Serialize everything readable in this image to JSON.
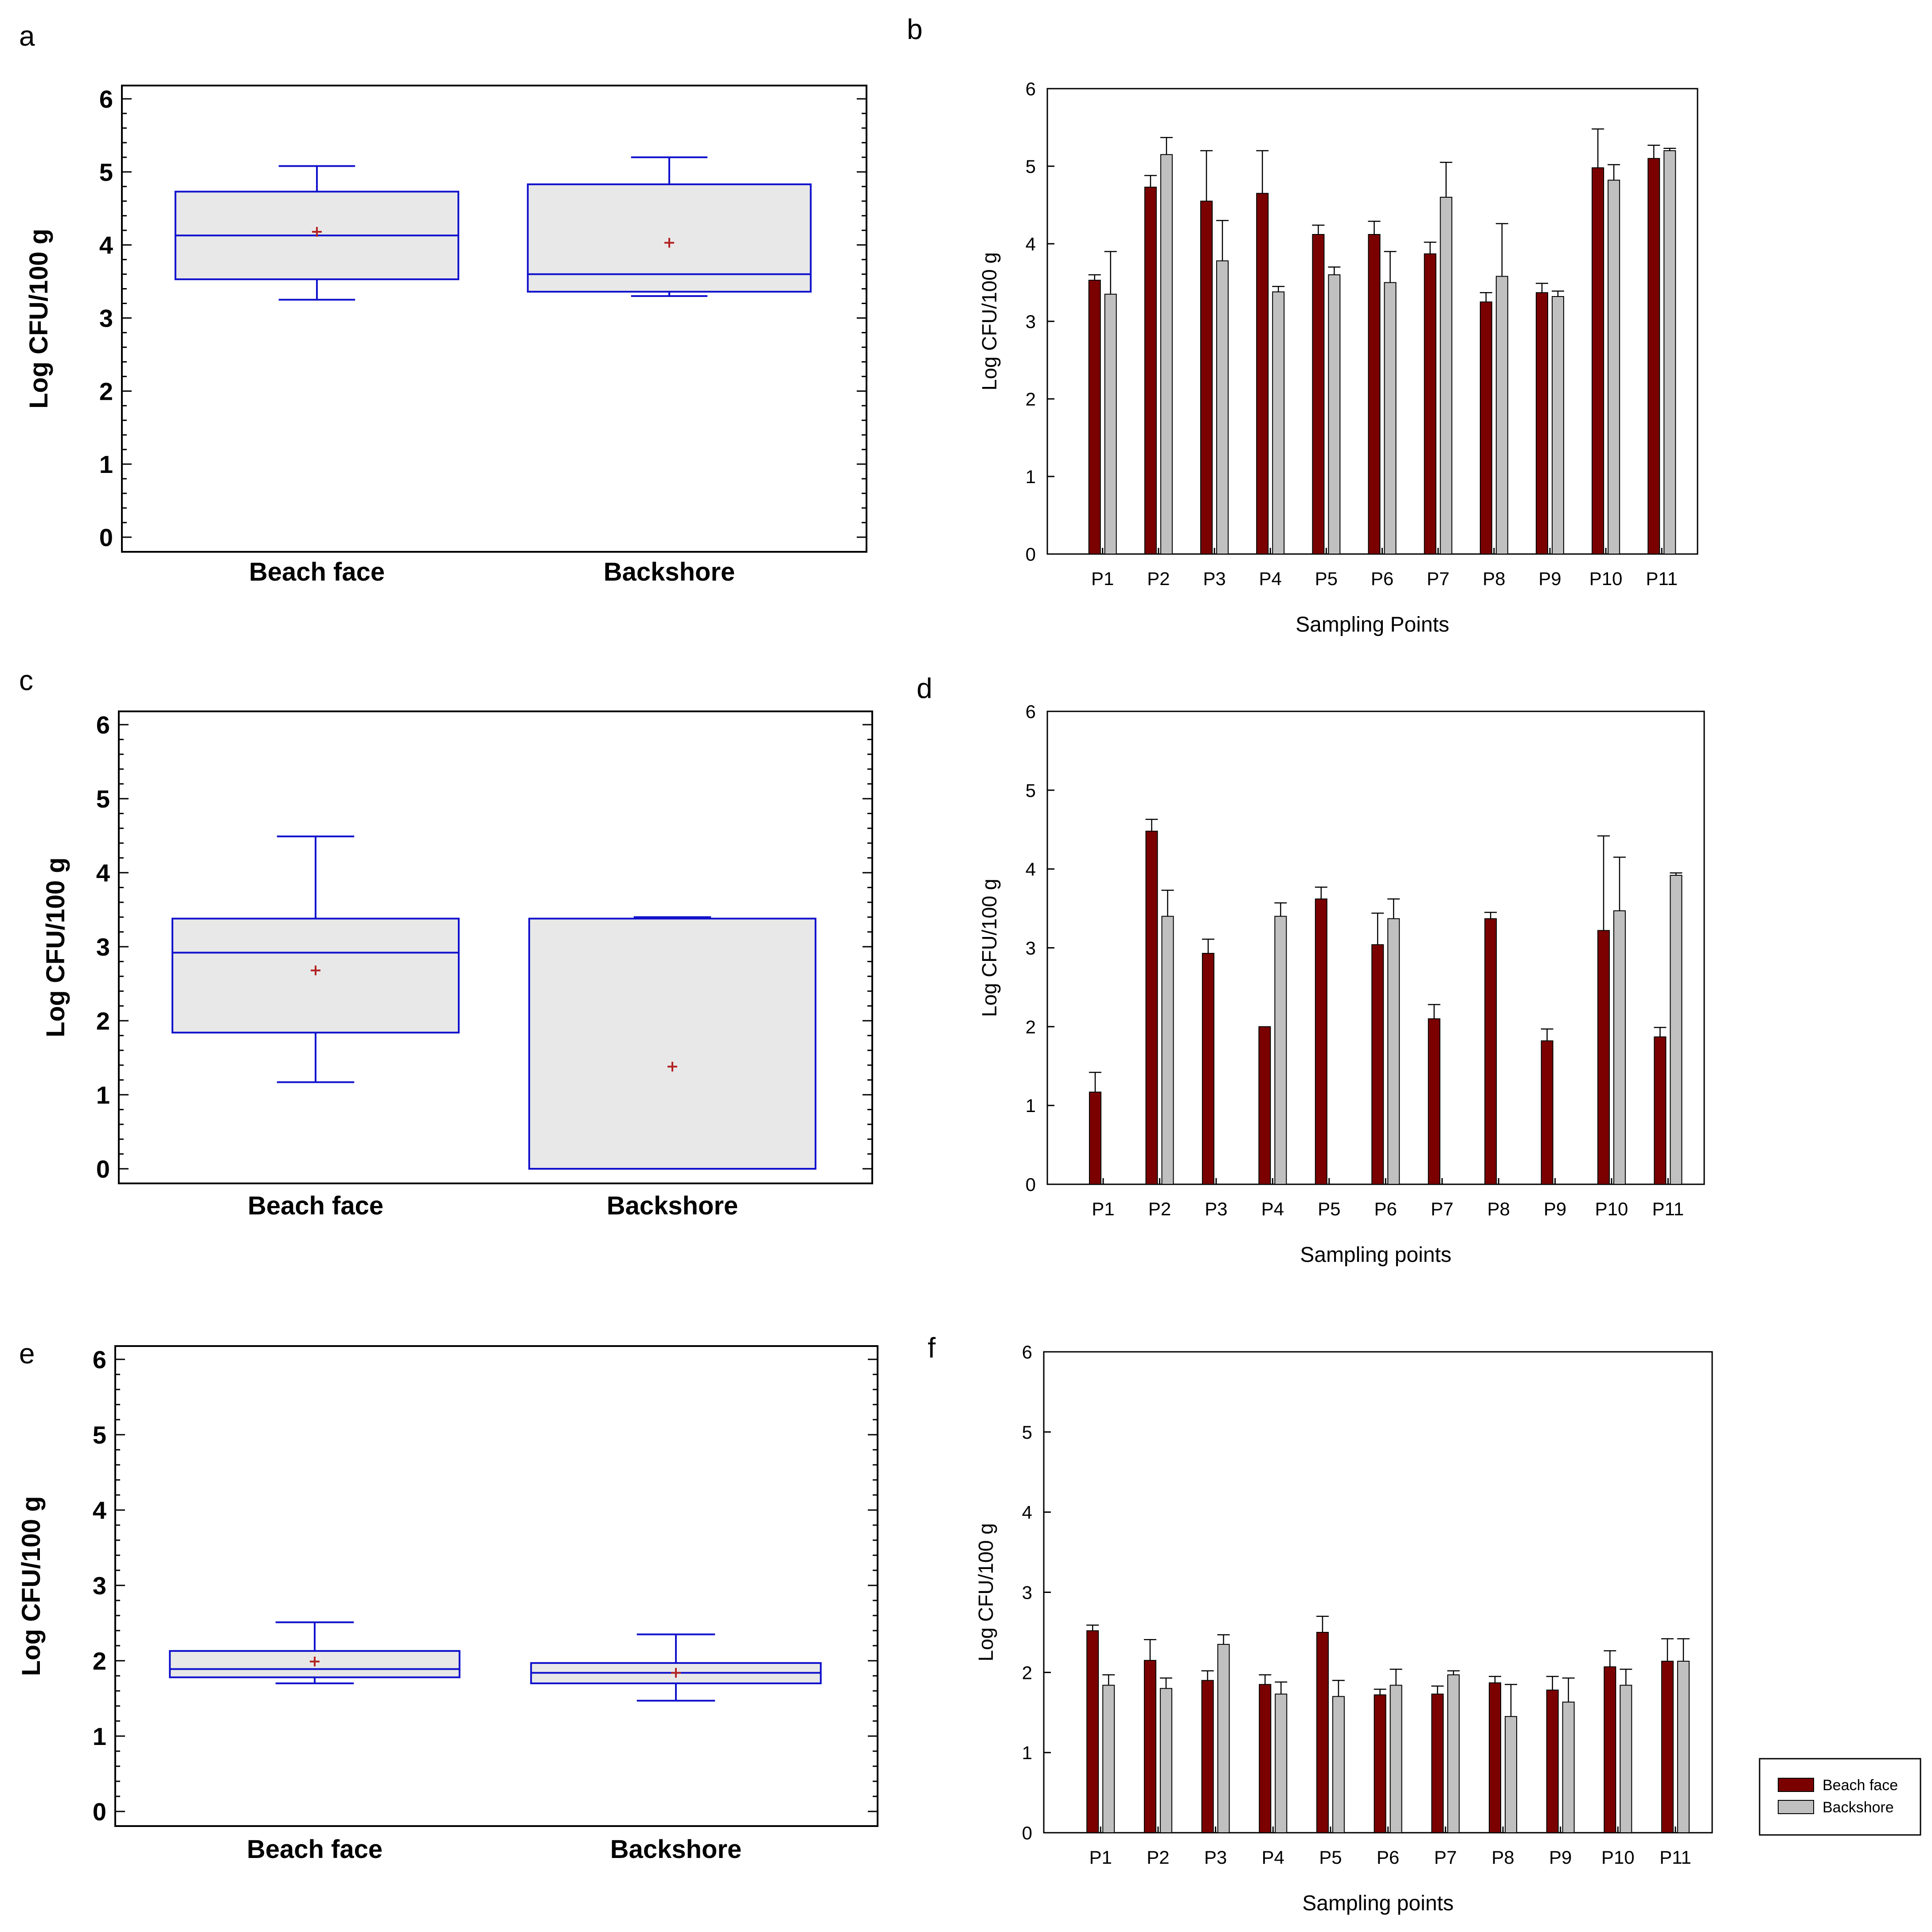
{
  "panels": {
    "a": {
      "letter": "a"
    },
    "b": {
      "letter": "b"
    },
    "c": {
      "letter": "c"
    },
    "d": {
      "letter": "d"
    },
    "e": {
      "letter": "e"
    },
    "f": {
      "letter": "f"
    }
  },
  "legend": {
    "items": [
      {
        "label": "Beach face",
        "color": "#7b0000"
      },
      {
        "label": "Backshore",
        "color": "#c0c0c0"
      }
    ]
  },
  "colors": {
    "box_outline": "#1111cc",
    "box_fill": "#e8e8e8",
    "mean_marker": "#b22222",
    "beach_face": "#7b0000",
    "backshore": "#c0c0c0"
  },
  "chart_data": [
    {
      "panel": "a",
      "type": "box",
      "title": "",
      "xlabel": "",
      "ylabel": "Log CFU/100 g",
      "ylim": [
        0,
        6
      ],
      "yticks": [
        "0",
        "1",
        "2",
        "3",
        "4",
        "5",
        "6"
      ],
      "categories": [
        "Beach face",
        "Backshore"
      ],
      "boxes": [
        {
          "min": 3.25,
          "q1": 3.53,
          "median": 4.13,
          "q3": 4.73,
          "max": 5.08,
          "mean": 4.18
        },
        {
          "min": 3.3,
          "q1": 3.36,
          "median": 3.6,
          "q3": 4.83,
          "max": 5.2,
          "mean": 4.03
        }
      ]
    },
    {
      "panel": "b",
      "type": "bar",
      "title": "",
      "xlabel": "Sampling Points",
      "ylabel": "Log  CFU/100 g",
      "ylim": [
        0,
        6
      ],
      "yticks": [
        "0",
        "1",
        "2",
        "3",
        "4",
        "5",
        "6"
      ],
      "categories": [
        "P1",
        "P2",
        "P3",
        "P4",
        "P5",
        "P6",
        "P7",
        "P8",
        "P9",
        "P10",
        "P11"
      ],
      "series": [
        {
          "name": "Beach face",
          "values": [
            3.53,
            4.73,
            4.55,
            4.65,
            4.12,
            4.12,
            3.87,
            3.25,
            3.37,
            4.98,
            5.1
          ],
          "errors": [
            0.07,
            0.15,
            0.65,
            0.55,
            0.12,
            0.17,
            0.15,
            0.12,
            0.12,
            0.5,
            0.17
          ]
        },
        {
          "name": "Backshore",
          "values": [
            3.35,
            5.15,
            3.78,
            3.38,
            3.6,
            3.5,
            4.6,
            3.58,
            3.32,
            4.82,
            5.2
          ],
          "errors": [
            0.55,
            0.22,
            0.52,
            0.07,
            0.1,
            0.4,
            0.45,
            0.68,
            0.07,
            0.2,
            0.03
          ]
        }
      ]
    },
    {
      "panel": "c",
      "type": "box",
      "title": "",
      "xlabel": "",
      "ylabel": "Log CFU/100 g",
      "ylim": [
        0,
        6
      ],
      "yticks": [
        "0",
        "1",
        "2",
        "3",
        "4",
        "5",
        "6"
      ],
      "categories": [
        "Beach face",
        "Backshore"
      ],
      "boxes": [
        {
          "min": 1.17,
          "q1": 1.84,
          "median": 2.92,
          "q3": 3.38,
          "max": 4.49,
          "mean": 2.68
        },
        {
          "min": 0,
          "q1": 0,
          "median": 0,
          "q3": 3.38,
          "max": 3.4,
          "mean": 1.38
        }
      ]
    },
    {
      "panel": "d",
      "type": "bar",
      "title": "",
      "xlabel": "Sampling points",
      "ylabel": "Log CFU/100 g",
      "ylim": [
        0,
        6
      ],
      "yticks": [
        "0",
        "1",
        "2",
        "3",
        "4",
        "5",
        "6"
      ],
      "categories": [
        "P1",
        "P2",
        "P3",
        "P4",
        "P5",
        "P6",
        "P7",
        "P8",
        "P9",
        "P10",
        "P11"
      ],
      "series": [
        {
          "name": "Beach face",
          "values": [
            1.17,
            4.48,
            2.93,
            2.0,
            3.62,
            3.04,
            2.1,
            3.37,
            1.82,
            3.22,
            1.87
          ],
          "errors": [
            0.25,
            0.15,
            0.18,
            0.0,
            0.15,
            0.4,
            0.18,
            0.08,
            0.15,
            1.2,
            0.12
          ]
        },
        {
          "name": "Backshore",
          "values": [
            0,
            3.4,
            0,
            3.4,
            0,
            3.37,
            0,
            0,
            0,
            3.47,
            3.92
          ],
          "errors": [
            0,
            0.33,
            0,
            0.17,
            0,
            0.25,
            0,
            0,
            0,
            0.68,
            0.03
          ]
        }
      ]
    },
    {
      "panel": "e",
      "type": "box",
      "title": "",
      "xlabel": "",
      "ylabel": "Log CFU/100 g",
      "ylim": [
        0,
        6
      ],
      "yticks": [
        "0",
        "1",
        "2",
        "3",
        "4",
        "5",
        "6"
      ],
      "categories": [
        "Beach face",
        "Backshore"
      ],
      "boxes": [
        {
          "min": 1.7,
          "q1": 1.78,
          "median": 1.89,
          "q3": 2.13,
          "max": 2.51,
          "mean": 1.99
        },
        {
          "min": 1.47,
          "q1": 1.7,
          "median": 1.84,
          "q3": 1.97,
          "max": 2.35,
          "mean": 1.84
        }
      ]
    },
    {
      "panel": "f",
      "type": "bar",
      "title": "",
      "xlabel": "Sampling points",
      "ylabel": "Log CFU/100 g",
      "ylim": [
        0,
        6
      ],
      "yticks": [
        "0",
        "1",
        "2",
        "3",
        "4",
        "5",
        "6"
      ],
      "categories": [
        "P1",
        "P2",
        "P3",
        "P4",
        "P5",
        "P6",
        "P7",
        "P8",
        "P9",
        "P10",
        "P11"
      ],
      "series": [
        {
          "name": "Beach face",
          "values": [
            2.52,
            2.15,
            1.9,
            1.85,
            2.5,
            1.72,
            1.73,
            1.87,
            1.78,
            2.07,
            2.14
          ],
          "errors": [
            0.07,
            0.26,
            0.12,
            0.12,
            0.2,
            0.07,
            0.1,
            0.08,
            0.17,
            0.2,
            0.28
          ]
        },
        {
          "name": "Backshore",
          "values": [
            1.84,
            1.8,
            2.35,
            1.73,
            1.7,
            1.84,
            1.97,
            1.45,
            1.63,
            1.84,
            2.14
          ],
          "errors": [
            0.13,
            0.13,
            0.12,
            0.15,
            0.2,
            0.2,
            0.05,
            0.4,
            0.3,
            0.2,
            0.28
          ]
        }
      ]
    }
  ]
}
